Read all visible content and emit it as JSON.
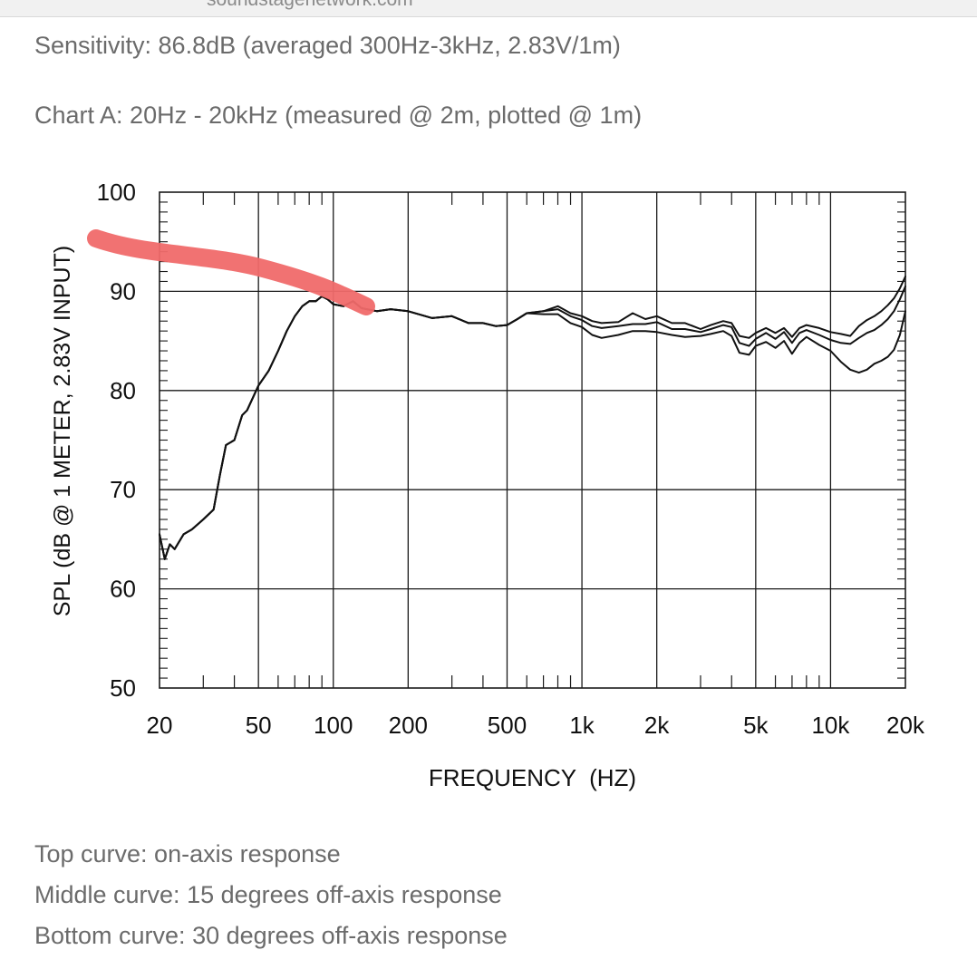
{
  "page": {
    "url_fragment": "soundstagenetwork.com",
    "sensitivity_text": "Sensitivity: 86.8dB (averaged 300Hz-3kHz, 2.83V/1m)",
    "chart_caption": "Chart A: 20Hz - 20kHz (measured @ 2m, plotted @ 1m)",
    "legend_lines": [
      "Top curve: on-axis response",
      "Middle curve: 15 degrees off-axis response",
      "Bottom curve: 30 degrees off-axis response"
    ]
  },
  "colors": {
    "text": "#6b6b6b",
    "curve": "#111111",
    "grid": "#1a1a1a",
    "annotation": "#f06a6a"
  },
  "chart_data": {
    "type": "line",
    "title": "",
    "xlabel": "FREQUENCY  (HZ)",
    "ylabel": "SPL (dB @ 1 METER, 2.83V INPUT)",
    "xscale": "log",
    "xlim": [
      20,
      20000
    ],
    "ylim": [
      50,
      100
    ],
    "grid": true,
    "xticks": [
      20,
      50,
      100,
      200,
      500,
      1000,
      2000,
      5000,
      10000,
      20000
    ],
    "xtick_labels": [
      "20",
      "50",
      "100",
      "200",
      "500",
      "1k",
      "2k",
      "5k",
      "10k",
      "20k"
    ],
    "yticks": [
      100,
      90,
      80,
      70,
      60,
      50
    ],
    "ytick_labels": [
      "100",
      "90",
      "80",
      "70",
      "60",
      "50"
    ],
    "series": [
      {
        "name": "on-axis",
        "x": [
          20,
          21,
          22,
          23,
          25,
          27,
          30,
          33,
          35,
          37,
          40,
          43,
          45,
          50,
          55,
          60,
          65,
          70,
          75,
          80,
          85,
          90,
          95,
          100,
          110,
          120,
          130,
          150,
          170,
          200,
          250,
          300,
          350,
          400,
          450,
          500,
          550,
          600,
          700,
          800,
          900,
          1000,
          1100,
          1200,
          1400,
          1600,
          1800,
          2000,
          2300,
          2600,
          3000,
          3300,
          3700,
          4000,
          4300,
          4700,
          5000,
          5500,
          6000,
          6500,
          7000,
          7500,
          8000,
          9000,
          10000,
          11000,
          12000,
          13000,
          14000,
          15000,
          16000,
          17000,
          18000,
          19000,
          20000
        ],
        "y": [
          65.5,
          63,
          64.5,
          64,
          65.5,
          66,
          67,
          68,
          71.5,
          74.5,
          75,
          77.5,
          78,
          80.5,
          82,
          84,
          86,
          87.5,
          88.5,
          89,
          89,
          89.5,
          89.2,
          88.7,
          88.5,
          89,
          88.3,
          88,
          88.2,
          88,
          87.3,
          87.5,
          86.8,
          86.8,
          86.5,
          86.6,
          87.2,
          87.8,
          88,
          88.5,
          87.8,
          87.5,
          87,
          86.8,
          86.9,
          87.8,
          87.2,
          87.5,
          86.8,
          86.8,
          86.2,
          86.6,
          87,
          86.8,
          85.5,
          85.3,
          85.8,
          86.3,
          85.8,
          86.3,
          85.4,
          86.3,
          86.6,
          86.3,
          85.9,
          85.7,
          85.5,
          86.5,
          87.1,
          87.5,
          88,
          88.6,
          89.3,
          90.3,
          91.5
        ]
      },
      {
        "name": "15 degrees off-axis",
        "x": [
          20,
          21,
          22,
          23,
          25,
          27,
          30,
          33,
          35,
          37,
          40,
          43,
          45,
          50,
          55,
          60,
          65,
          70,
          75,
          80,
          85,
          90,
          95,
          100,
          110,
          120,
          130,
          150,
          170,
          200,
          250,
          300,
          350,
          400,
          450,
          500,
          550,
          600,
          700,
          800,
          900,
          1000,
          1100,
          1200,
          1400,
          1600,
          1800,
          2000,
          2300,
          2600,
          3000,
          3300,
          3700,
          4000,
          4300,
          4700,
          5000,
          5500,
          6000,
          6500,
          7000,
          7500,
          8000,
          9000,
          10000,
          11000,
          12000,
          13000,
          14000,
          15000,
          16000,
          17000,
          18000,
          19000,
          20000
        ],
        "y": [
          65.5,
          63,
          64.5,
          64,
          65.5,
          66,
          67,
          68,
          71.5,
          74.5,
          75,
          77.5,
          78,
          80.5,
          82,
          84,
          86,
          87.5,
          88.5,
          89,
          89,
          89.5,
          89.2,
          88.7,
          88.5,
          89,
          88.3,
          88,
          88.2,
          88,
          87.3,
          87.5,
          86.8,
          86.8,
          86.5,
          86.6,
          87.2,
          87.8,
          88,
          88.2,
          87.5,
          87.1,
          86.5,
          86.3,
          86.5,
          86.7,
          86.7,
          86.9,
          86.2,
          86.2,
          85.9,
          86.2,
          86.6,
          86.4,
          84.8,
          84.5,
          85.2,
          85.8,
          85.2,
          85.9,
          84.8,
          85.8,
          86.1,
          85.6,
          85.1,
          84.8,
          84.7,
          85.3,
          85.8,
          86.1,
          86.6,
          87.2,
          88,
          89.2,
          90.5
        ]
      },
      {
        "name": "30 degrees off-axis",
        "x": [
          20,
          21,
          22,
          23,
          25,
          27,
          30,
          33,
          35,
          37,
          40,
          43,
          45,
          50,
          55,
          60,
          65,
          70,
          75,
          80,
          85,
          90,
          95,
          100,
          110,
          120,
          130,
          150,
          170,
          200,
          250,
          300,
          350,
          400,
          450,
          500,
          550,
          600,
          700,
          800,
          900,
          1000,
          1100,
          1200,
          1400,
          1600,
          1800,
          2000,
          2300,
          2600,
          3000,
          3300,
          3700,
          4000,
          4300,
          4700,
          5000,
          5500,
          6000,
          6500,
          7000,
          7500,
          8000,
          9000,
          10000,
          11000,
          12000,
          13000,
          14000,
          15000,
          16000,
          17000,
          18000,
          19000,
          20000
        ],
        "y": [
          65.5,
          63,
          64.5,
          64,
          65.5,
          66,
          67,
          68,
          71.5,
          74.5,
          75,
          77.5,
          78,
          80.5,
          82,
          84,
          86,
          87.5,
          88.5,
          89,
          89,
          89.5,
          89.2,
          88.7,
          88.5,
          89,
          88.3,
          88,
          88.2,
          88,
          87.3,
          87.5,
          86.8,
          86.8,
          86.5,
          86.6,
          87.2,
          87.8,
          87.7,
          87.7,
          86.8,
          86.4,
          85.6,
          85.3,
          85.6,
          86,
          86,
          85.9,
          85.6,
          85.4,
          85.5,
          85.7,
          86,
          85.5,
          83.8,
          83.6,
          84.5,
          84.9,
          84.3,
          85,
          83.7,
          84.8,
          85.4,
          84.6,
          84,
          82.9,
          82.1,
          81.8,
          82.1,
          82.7,
          83,
          83.4,
          84.1,
          85.6,
          88
        ]
      }
    ]
  }
}
